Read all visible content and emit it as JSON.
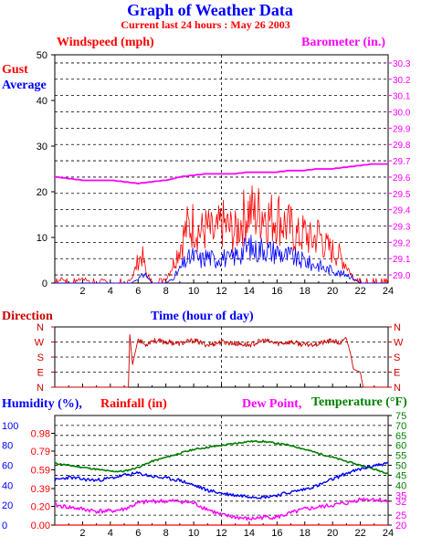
{
  "header": {
    "title": "Graph of Weather Data",
    "subtitle": "Current last 24 hours : May 26 2003"
  },
  "colors": {
    "gust": "#ff0000",
    "average": "#0000ff",
    "barometer": "#ff00ff",
    "direction": "#cc0000",
    "humidity": "#0000ff",
    "rainfall": "#ff0000",
    "dew_point": "#ff00ff",
    "temperature": "#008000",
    "axis": "#000000",
    "grid": "#000000"
  },
  "chart_data": [
    {
      "type": "line",
      "panel": "wind",
      "labels": {
        "left_title": "Windspeed (mph)",
        "right_title": "Barometer (in.)",
        "gust": "Gust",
        "average": "Average",
        "xlabel": "Time (hour of day)"
      },
      "xlim": [
        0,
        24
      ],
      "x_ticks": [
        "2",
        "4",
        "6",
        "8",
        "10",
        "12",
        "14",
        "16",
        "18",
        "20",
        "22",
        "24"
      ],
      "y_left_lim": [
        0,
        50
      ],
      "y_left_ticks": [
        "0",
        "10",
        "20",
        "30",
        "40",
        "50"
      ],
      "y_right_lim": [
        28.95,
        30.35
      ],
      "y_right_ticks": [
        "29.0",
        "29.1",
        "29.2",
        "29.3",
        "29.4",
        "29.5",
        "29.6",
        "29.7",
        "29.8",
        "29.9",
        "30.0",
        "30.1",
        "30.2",
        "30.3"
      ],
      "grid": true,
      "series": [
        {
          "name": "Gust",
          "axis": "left",
          "x": [
            0,
            0.5,
            1,
            2,
            3,
            3.5,
            4,
            5,
            5.5,
            5.8,
            6,
            6.3,
            6.6,
            7,
            7.5,
            8,
            8.5,
            9,
            9.5,
            10,
            10.5,
            11,
            11.5,
            12,
            12.5,
            13,
            13.5,
            14,
            14.5,
            15,
            15.5,
            16,
            16.5,
            17,
            17.5,
            18,
            18.5,
            19,
            19.5,
            20,
            20.5,
            21,
            21.5,
            22,
            23,
            24
          ],
          "values": [
            0,
            1,
            0,
            1,
            0,
            1,
            0,
            0,
            1,
            3,
            5,
            6,
            2,
            0,
            0,
            1,
            4,
            8,
            12,
            13,
            11,
            12,
            10,
            13,
            12,
            11,
            14,
            16,
            15,
            16,
            14,
            15,
            13,
            12,
            10,
            11,
            9,
            11,
            8,
            7,
            6,
            4,
            1,
            0,
            0,
            0
          ]
        },
        {
          "name": "Average",
          "axis": "left",
          "x": [
            0,
            1,
            2,
            3,
            4,
            5,
            5.5,
            6,
            6.5,
            7,
            7.5,
            8,
            8.5,
            9,
            9.5,
            10,
            10.5,
            11,
            11.5,
            12,
            12.5,
            13,
            13.5,
            14,
            14.5,
            15,
            15.5,
            16,
            16.5,
            17,
            17.5,
            18,
            18.5,
            19,
            19.5,
            20,
            20.5,
            21,
            21.5,
            22,
            23,
            24
          ],
          "values": [
            0,
            0,
            0,
            0,
            0,
            0,
            0,
            1,
            2,
            0,
            0,
            0,
            1,
            3,
            5,
            6,
            5,
            6,
            5,
            6,
            5,
            6,
            7,
            8,
            7,
            8,
            7,
            7,
            6,
            6,
            5,
            5,
            4,
            4,
            3,
            3,
            2,
            2,
            1,
            0,
            0,
            0
          ]
        },
        {
          "name": "Barometer",
          "axis": "right",
          "x": [
            0,
            1,
            2,
            3,
            4,
            5,
            6,
            7,
            8,
            9,
            10,
            11,
            12,
            13,
            14,
            15,
            16,
            17,
            18,
            19,
            20,
            21,
            22,
            23,
            24
          ],
          "values": [
            29.6,
            29.59,
            29.58,
            29.58,
            29.58,
            29.57,
            29.56,
            29.57,
            29.58,
            29.6,
            29.61,
            29.62,
            29.62,
            29.62,
            29.63,
            29.63,
            29.63,
            29.64,
            29.64,
            29.65,
            29.65,
            29.66,
            29.67,
            29.68,
            29.68
          ]
        }
      ]
    },
    {
      "type": "line",
      "panel": "direction",
      "labels": {
        "title": "Direction"
      },
      "xlim": [
        0,
        24
      ],
      "y_ticks": [
        "N",
        "W",
        "S",
        "E",
        "N"
      ],
      "y_lim": [
        0,
        4
      ],
      "grid": true,
      "series": [
        {
          "name": "Direction",
          "x": [
            0,
            2,
            4,
            5.3,
            5.4,
            5.6,
            6,
            6.5,
            7,
            8,
            9,
            10,
            11,
            12,
            13,
            14,
            15,
            16,
            17,
            18,
            19,
            20,
            20.5,
            21,
            21.3,
            21.5,
            22,
            22.2,
            23,
            24
          ],
          "values": [
            0,
            0,
            0,
            0,
            3.5,
            1.5,
            3.2,
            2.8,
            3.1,
            3.0,
            2.9,
            3.1,
            2.8,
            3.0,
            2.9,
            2.8,
            3.1,
            2.9,
            3.0,
            2.8,
            2.9,
            3.1,
            2.9,
            3.2,
            2.2,
            1.2,
            1.0,
            0,
            0,
            0
          ]
        }
      ]
    },
    {
      "type": "line",
      "panel": "humidity",
      "labels": {
        "humidity": "Humidity (%),",
        "rainfall": "Rainfall (in)",
        "dew_point": "Dew Point,",
        "temperature": "Temperature (°F)"
      },
      "xlim": [
        0,
        24
      ],
      "x_ticks": [
        "2",
        "4",
        "6",
        "8",
        "10",
        "12",
        "14",
        "16",
        "18",
        "20",
        "22",
        "24"
      ],
      "y_humidity_lim": [
        0,
        110
      ],
      "y_humidity_ticks": [
        "0",
        "20",
        "40",
        "60",
        "80",
        "100"
      ],
      "y_rain_lim": [
        0,
        1.17
      ],
      "y_rain_ticks": [
        "0.00",
        "0.20",
        "0.39",
        "0.59",
        "0.79",
        "0.98"
      ],
      "y_temp_lim": [
        20,
        75
      ],
      "y_temp_ticks": [
        "20",
        "25",
        "32",
        "35",
        "40",
        "45",
        "50",
        "55",
        "60",
        "65",
        "70",
        "75"
      ],
      "grid": true,
      "series": [
        {
          "name": "Temperature",
          "axis": "temp",
          "x": [
            0,
            1,
            2,
            3,
            4,
            5,
            6,
            7,
            8,
            9,
            10,
            11,
            12,
            13,
            14,
            15,
            16,
            17,
            18,
            19,
            20,
            21,
            22,
            23,
            24
          ],
          "values": [
            51,
            50,
            49,
            48,
            47,
            47,
            49,
            52,
            54,
            56,
            58,
            59,
            60,
            61,
            62,
            62,
            61,
            60,
            58,
            56,
            54,
            52,
            50,
            48,
            46
          ]
        },
        {
          "name": "Humidity",
          "axis": "humidity",
          "x": [
            0,
            1,
            2,
            3,
            4,
            5,
            6,
            7,
            8,
            9,
            10,
            11,
            12,
            13,
            14,
            15,
            16,
            17,
            18,
            19,
            20,
            21,
            22,
            23,
            24
          ],
          "values": [
            45,
            48,
            46,
            45,
            47,
            50,
            52,
            49,
            47,
            45,
            40,
            35,
            32,
            30,
            29,
            28,
            30,
            33,
            36,
            40,
            46,
            52,
            56,
            60,
            62
          ]
        },
        {
          "name": "Dew Point",
          "axis": "temp",
          "x": [
            0,
            1,
            2,
            3,
            4,
            5,
            6,
            7,
            8,
            9,
            10,
            11,
            12,
            13,
            14,
            15,
            16,
            17,
            18,
            19,
            20,
            21,
            22,
            23,
            24
          ],
          "values": [
            30,
            29,
            28,
            27,
            27,
            28,
            31,
            32,
            32,
            32,
            31,
            28,
            25,
            24,
            23,
            24,
            24,
            26,
            28,
            29,
            30,
            31,
            33,
            33,
            32
          ]
        },
        {
          "name": "Rainfall",
          "axis": "rain",
          "x": [
            0,
            24
          ],
          "values": [
            0,
            0
          ]
        }
      ]
    }
  ]
}
